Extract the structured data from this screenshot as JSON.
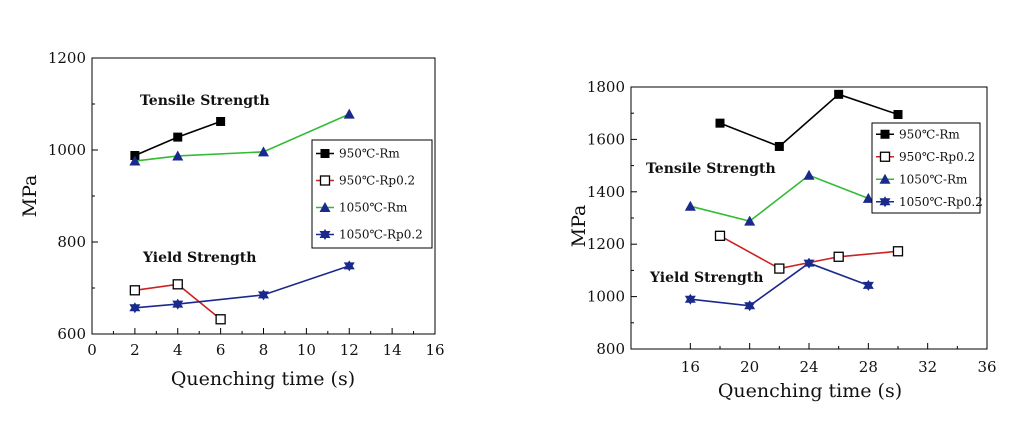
{
  "chart_data": [
    {
      "type": "line",
      "xlabel": "Quenching time (s)",
      "ylabel": "MPa",
      "xlim": [
        0,
        16
      ],
      "ylim": [
        600,
        1200
      ],
      "xticks": [
        0,
        2,
        4,
        6,
        8,
        10,
        12,
        14,
        16
      ],
      "yticks": [
        600,
        800,
        1000,
        1200
      ],
      "annotations": [
        "Tensile Strength",
        "Yield Strength"
      ],
      "legend_position": "center-right",
      "series": [
        {
          "name": "950℃-Rm",
          "color": "#000000",
          "marker": "square-filled",
          "x": [
            2,
            4,
            6
          ],
          "y": [
            988,
            1028,
            1062
          ]
        },
        {
          "name": "950℃-Rp0.2",
          "color": "#cc2222",
          "marker": "square-open",
          "x": [
            2,
            4,
            6
          ],
          "y": [
            695,
            708,
            632
          ]
        },
        {
          "name": "1050℃-Rm",
          "color": "#33bb33",
          "marker": "triangle-filled",
          "x": [
            2,
            4,
            8,
            12
          ],
          "y": [
            976,
            987,
            996,
            1078
          ]
        },
        {
          "name": "1050℃-Rp0.2",
          "color": "#1a2a8c",
          "marker": "star-triangle",
          "x": [
            2,
            4,
            8,
            12
          ],
          "y": [
            657,
            665,
            685,
            748
          ]
        }
      ]
    },
    {
      "type": "line",
      "xlabel": "Quenching time (s)",
      "ylabel": "MPa",
      "xlim": [
        12,
        36
      ],
      "ylim": [
        800,
        1800
      ],
      "xticks": [
        16,
        20,
        24,
        28,
        32,
        36
      ],
      "yticks": [
        800,
        1000,
        1200,
        1400,
        1600,
        1800
      ],
      "annotations": [
        "Tensile Strength",
        "Yield Strength"
      ],
      "legend_position": "top-right",
      "series": [
        {
          "name": "950℃-Rm",
          "color": "#000000",
          "marker": "square-filled",
          "x": [
            18,
            22,
            26,
            30
          ],
          "y": [
            1662,
            1573,
            1772,
            1695
          ]
        },
        {
          "name": "950℃-Rp0.2",
          "color": "#cc2222",
          "marker": "square-open",
          "x": [
            18,
            22,
            26,
            30
          ],
          "y": [
            1232,
            1107,
            1152,
            1173
          ]
        },
        {
          "name": "1050℃-Rm",
          "color": "#33bb33",
          "marker": "triangle-filled",
          "x": [
            16,
            20,
            24,
            28
          ],
          "y": [
            1345,
            1288,
            1463,
            1375
          ]
        },
        {
          "name": "1050℃-Rp0.2",
          "color": "#1a2a8c",
          "marker": "star-triangle",
          "x": [
            16,
            20,
            24,
            28
          ],
          "y": [
            990,
            965,
            1128,
            1043
          ]
        }
      ]
    }
  ]
}
